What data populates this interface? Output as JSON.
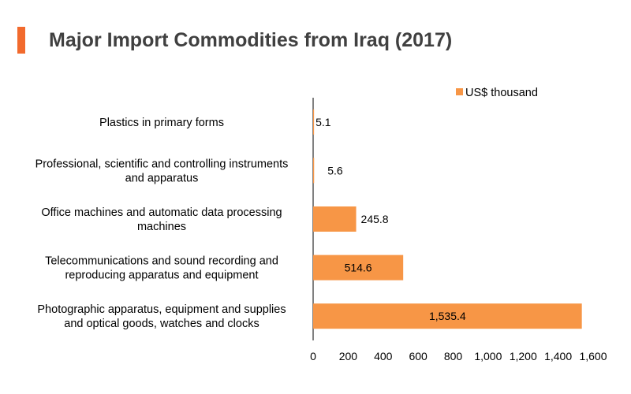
{
  "header": {
    "title": "Major Import Commodities from Iraq (2017)"
  },
  "colors": {
    "bar": "#f79646",
    "accent": "#f26a2d",
    "axis": "#000000"
  },
  "chart_data": {
    "type": "bar",
    "orientation": "horizontal",
    "title": "Major Import Commodities from Iraq (2017)",
    "xlabel": "",
    "ylabel": "",
    "xlim": [
      0,
      1600
    ],
    "ticks": [
      "0",
      "200",
      "400",
      "600",
      "800",
      "1,000",
      "1,200",
      "1,400",
      "1,600"
    ],
    "legend": {
      "position": "top-right",
      "entries": [
        "US$ thousand"
      ]
    },
    "categories": [
      [
        "Plastics in primary forms"
      ],
      [
        "Professional, scientific and controlling instruments",
        "and apparatus"
      ],
      [
        "Office machines and automatic data processing",
        "machines"
      ],
      [
        "Telecommunications and sound recording and",
        "reproducing apparatus and equipment"
      ],
      [
        "Photographic apparatus, equipment and supplies",
        "and optical goods, watches and clocks"
      ]
    ],
    "series": [
      {
        "name": "US$ thousand",
        "values": [
          5.1,
          5.6,
          245.8,
          514.6,
          1535.4
        ],
        "labels": [
          "5.1",
          "5.6",
          "245.8",
          "514.6",
          "1,535.4"
        ]
      }
    ]
  }
}
